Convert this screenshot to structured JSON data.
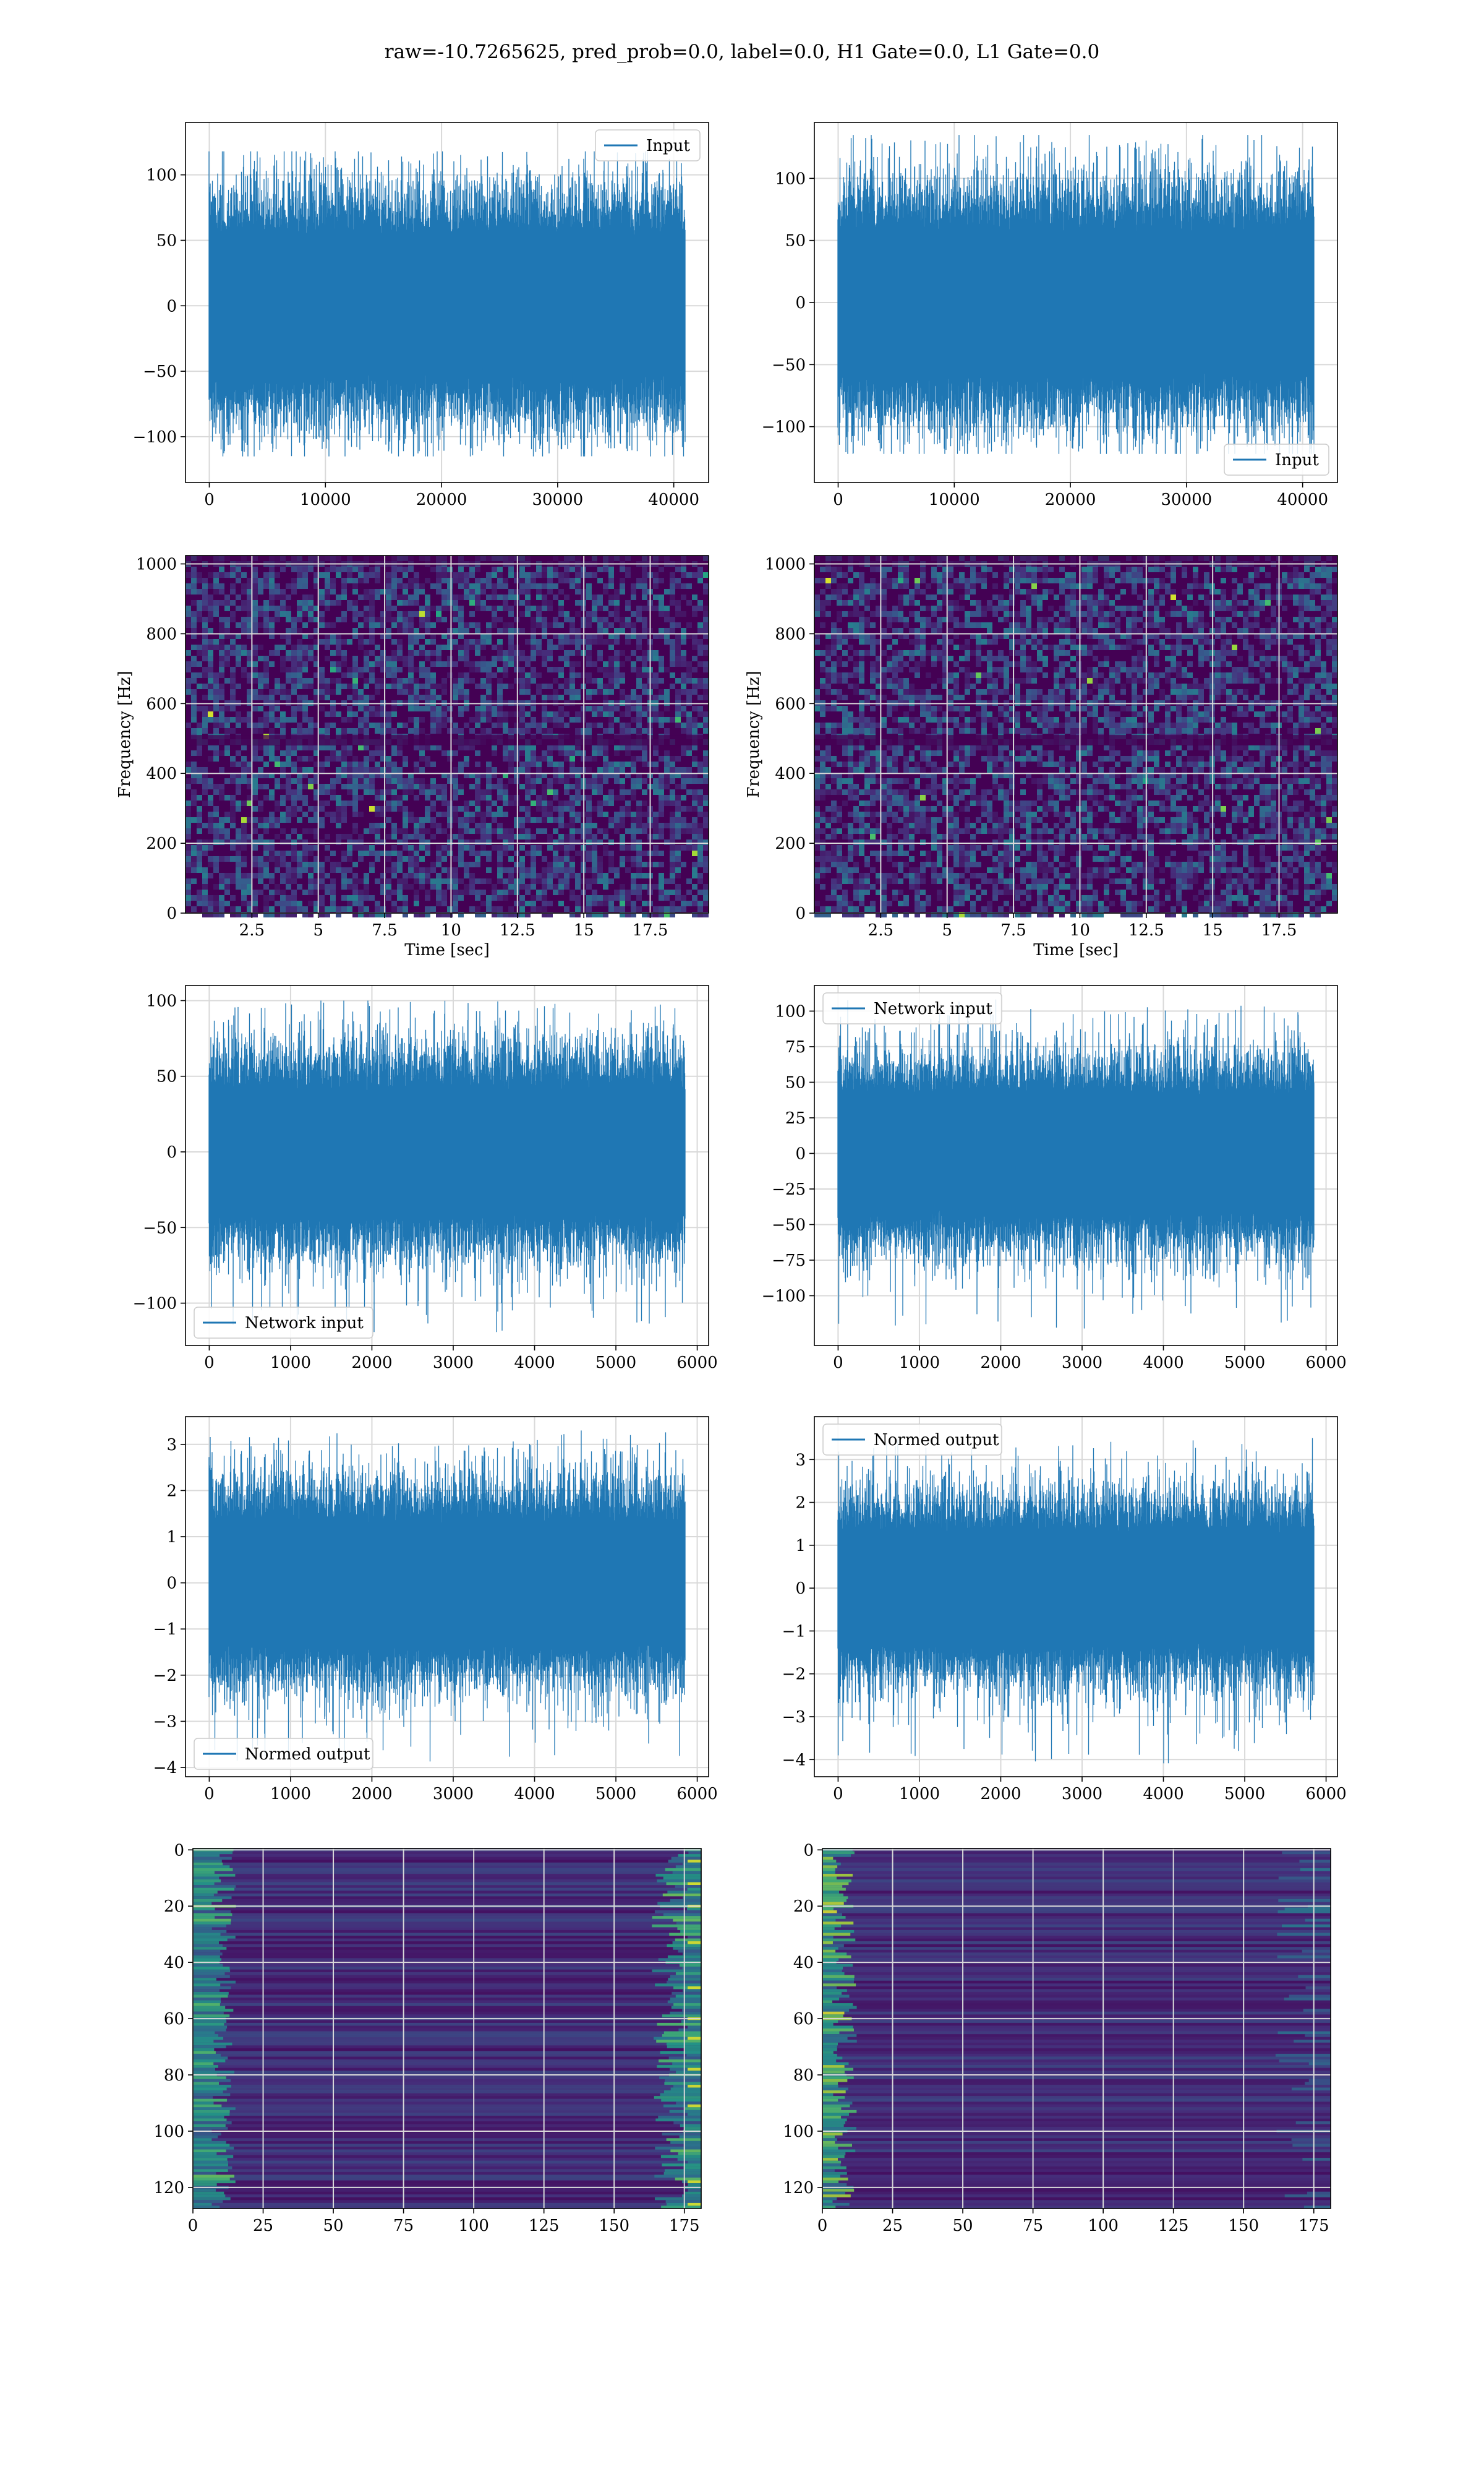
{
  "figure_title": "raw=-10.7265625, pred_prob=0.0, label=0.0, H1 Gate=0.0, L1 Gate=0.0",
  "colors": {
    "line": "#1f77b4",
    "grid": "#d9d9d9",
    "viridis": [
      "#440154",
      "#46327e",
      "#365c8d",
      "#277f8e",
      "#1fa187",
      "#4ac16d",
      "#a0da39",
      "#fde725"
    ]
  },
  "chart_data": [
    {
      "id": "input-left",
      "type": "line",
      "title": "",
      "xlabel": "",
      "ylabel": "",
      "xlim": [
        -2050,
        43000
      ],
      "ylim": [
        -135,
        140
      ],
      "xticks": [
        0,
        10000,
        20000,
        30000,
        40000
      ],
      "yticks": [
        -100,
        -50,
        0,
        50,
        100
      ],
      "grid": true,
      "legend": "upper right",
      "series": [
        {
          "name": "Input",
          "x_range": [
            0,
            40960
          ],
          "points": 40960,
          "envelope_core": [
            -65,
            65
          ],
          "extremes": [
            -115,
            118
          ]
        }
      ]
    },
    {
      "id": "input-right",
      "type": "line",
      "title": "",
      "xlabel": "",
      "ylabel": "",
      "xlim": [
        -2050,
        43000
      ],
      "ylim": [
        -145,
        145
      ],
      "xticks": [
        0,
        10000,
        20000,
        30000,
        40000
      ],
      "yticks": [
        -100,
        -50,
        0,
        50,
        100
      ],
      "grid": true,
      "legend": "lower right",
      "series": [
        {
          "name": "Input",
          "x_range": [
            0,
            40960
          ],
          "points": 40960,
          "envelope_core": [
            -70,
            70
          ],
          "extremes": [
            -122,
            135
          ]
        }
      ]
    },
    {
      "id": "spectrogram-left",
      "type": "heatmap",
      "title": "",
      "xlabel": "Time [sec]",
      "ylabel": "Frequency [Hz]",
      "xlim": [
        0,
        19.7
      ],
      "ylim": [
        0,
        1024
      ],
      "xticks": [
        2.5,
        5.0,
        7.5,
        10.0,
        12.5,
        15.0,
        17.5
      ],
      "yticks": [
        0,
        200,
        400,
        600,
        800,
        1000
      ],
      "grid": true,
      "colormap": "viridis"
    },
    {
      "id": "spectrogram-right",
      "type": "heatmap",
      "title": "",
      "xlabel": "Time [sec]",
      "ylabel": "Frequency [Hz]",
      "xlim": [
        0,
        19.7
      ],
      "ylim": [
        0,
        1024
      ],
      "xticks": [
        2.5,
        5.0,
        7.5,
        10.0,
        12.5,
        15.0,
        17.5
      ],
      "yticks": [
        0,
        200,
        400,
        600,
        800,
        1000
      ],
      "grid": true,
      "colormap": "viridis"
    },
    {
      "id": "network-left",
      "type": "line",
      "title": "",
      "xlabel": "",
      "ylabel": "",
      "xlim": [
        -292,
        6140
      ],
      "ylim": [
        -128,
        110
      ],
      "xticks": [
        0,
        1000,
        2000,
        3000,
        4000,
        5000,
        6000
      ],
      "yticks": [
        -100,
        -50,
        0,
        50,
        100
      ],
      "grid": true,
      "legend": "lower left",
      "series": [
        {
          "name": "Network input",
          "x_range": [
            0,
            5850
          ],
          "points": 5850,
          "envelope_core": [
            -50,
            50
          ],
          "extremes": [
            -120,
            100
          ]
        }
      ]
    },
    {
      "id": "network-right",
      "type": "line",
      "title": "",
      "xlabel": "",
      "ylabel": "",
      "xlim": [
        -292,
        6140
      ],
      "ylim": [
        -135,
        118
      ],
      "xticks": [
        0,
        1000,
        2000,
        3000,
        4000,
        5000,
        6000
      ],
      "yticks": [
        -100,
        -75,
        -50,
        -25,
        0,
        25,
        50,
        75,
        100
      ],
      "grid": true,
      "legend": "upper left",
      "series": [
        {
          "name": "Network input",
          "x_range": [
            0,
            5850
          ],
          "points": 5850,
          "envelope_core": [
            -50,
            50
          ],
          "extremes": [
            -126,
            110
          ]
        }
      ]
    },
    {
      "id": "normed-left",
      "type": "line",
      "title": "",
      "xlabel": "",
      "ylabel": "",
      "xlim": [
        -292,
        6140
      ],
      "ylim": [
        -4.2,
        3.6
      ],
      "xticks": [
        0,
        1000,
        2000,
        3000,
        4000,
        5000,
        6000
      ],
      "yticks": [
        -4,
        -3,
        -2,
        -1,
        0,
        1,
        2,
        3
      ],
      "grid": true,
      "legend": "lower left",
      "series": [
        {
          "name": "Normed output",
          "x_range": [
            0,
            5850
          ],
          "points": 5850,
          "envelope_core": [
            -1.6,
            1.6
          ],
          "extremes": [
            -3.9,
            3.3
          ]
        }
      ]
    },
    {
      "id": "normed-right",
      "type": "line",
      "title": "",
      "xlabel": "",
      "ylabel": "",
      "xlim": [
        -292,
        6140
      ],
      "ylim": [
        -4.4,
        4.0
      ],
      "xticks": [
        0,
        1000,
        2000,
        3000,
        4000,
        5000,
        6000
      ],
      "yticks": [
        -4,
        -3,
        -2,
        -1,
        0,
        1,
        2,
        3
      ],
      "grid": true,
      "legend": "upper left",
      "series": [
        {
          "name": "Normed output",
          "x_range": [
            0,
            5850
          ],
          "points": 5850,
          "envelope_core": [
            -1.6,
            1.6
          ],
          "extremes": [
            -4.1,
            3.5
          ]
        }
      ]
    },
    {
      "id": "features-left",
      "type": "heatmap",
      "title": "",
      "xlabel": "",
      "ylabel": "",
      "xlim": [
        0,
        181
      ],
      "ylim": [
        127.5,
        -0.5
      ],
      "xticks": [
        0,
        25,
        50,
        75,
        100,
        125,
        150,
        175
      ],
      "yticks": [
        0,
        20,
        40,
        60,
        80,
        100,
        120
      ],
      "grid": true,
      "colormap": "viridis"
    },
    {
      "id": "features-right",
      "type": "heatmap",
      "title": "",
      "xlabel": "",
      "ylabel": "",
      "xlim": [
        0,
        181
      ],
      "ylim": [
        127.5,
        -0.5
      ],
      "xticks": [
        0,
        25,
        50,
        75,
        100,
        125,
        150,
        175
      ],
      "yticks": [
        0,
        20,
        40,
        60,
        80,
        100,
        120
      ],
      "grid": true,
      "colormap": "viridis"
    }
  ]
}
